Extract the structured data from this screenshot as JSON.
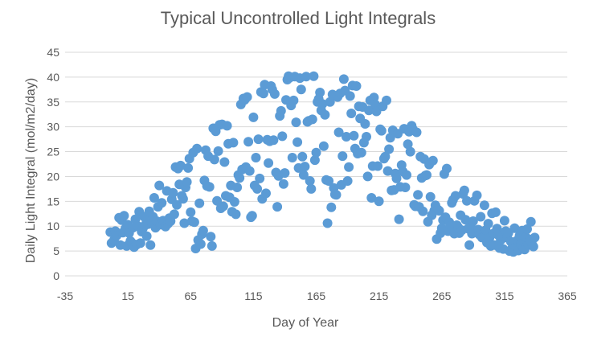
{
  "chart_data": {
    "type": "scatter",
    "title": "Typical Uncontrolled Light Integrals",
    "xlabel": "Day of Year",
    "ylabel": "Daily Light Integral (mol/m2/day)",
    "xlim": [
      -35,
      365
    ],
    "ylim": [
      0,
      45
    ],
    "xticks": [
      -35,
      15,
      65,
      115,
      165,
      215,
      265,
      315,
      365
    ],
    "yticks": [
      0,
      5,
      10,
      15,
      20,
      25,
      30,
      35,
      40,
      45
    ],
    "grid": "horizontal",
    "legend": "none",
    "color": "#5b9bd5",
    "points": [
      [
        1,
        8.8
      ],
      [
        2,
        6.6
      ],
      [
        4,
        7.2
      ],
      [
        5,
        9.0
      ],
      [
        6,
        8.1
      ],
      [
        8,
        11.7
      ],
      [
        9,
        6.2
      ],
      [
        10,
        11.2
      ],
      [
        11,
        8.7
      ],
      [
        12,
        12.1
      ],
      [
        13,
        9.5
      ],
      [
        14,
        6.0
      ],
      [
        15,
        10.3
      ],
      [
        16,
        8.6
      ],
      [
        17,
        7.0
      ],
      [
        18,
        6.7
      ],
      [
        19,
        9.7
      ],
      [
        20,
        5.8
      ],
      [
        21,
        11.4
      ],
      [
        22,
        6.3
      ],
      [
        23,
        10.0
      ],
      [
        24,
        12.9
      ],
      [
        25,
        6.6
      ],
      [
        26,
        8.9
      ],
      [
        27,
        9.6
      ],
      [
        28,
        11.9
      ],
      [
        29,
        10.3
      ],
      [
        30,
        8.0
      ],
      [
        31,
        10.4
      ],
      [
        32,
        13.0
      ],
      [
        33,
        6.2
      ],
      [
        34,
        10.8
      ],
      [
        35,
        11.9
      ],
      [
        36,
        15.7
      ],
      [
        37,
        9.7
      ],
      [
        38,
        11.0
      ],
      [
        39,
        13.9
      ],
      [
        40,
        18.2
      ],
      [
        41,
        10.3
      ],
      [
        42,
        14.7
      ],
      [
        43,
        11.1
      ],
      [
        44,
        10.8
      ],
      [
        45,
        9.9
      ],
      [
        46,
        17.1
      ],
      [
        47,
        10.5
      ],
      [
        48,
        11.6
      ],
      [
        49,
        11.0
      ],
      [
        50,
        15.4
      ],
      [
        51,
        16.7
      ],
      [
        52,
        12.4
      ],
      [
        53,
        21.9
      ],
      [
        54,
        14.3
      ],
      [
        55,
        21.6
      ],
      [
        56,
        18.4
      ],
      [
        57,
        22.2
      ],
      [
        58,
        16.1
      ],
      [
        59,
        15.5
      ],
      [
        60,
        10.6
      ],
      [
        61,
        17.8
      ],
      [
        62,
        18.9
      ],
      [
        63,
        21.7
      ],
      [
        64,
        23.6
      ],
      [
        65,
        12.8
      ],
      [
        66,
        11.0
      ],
      [
        67,
        24.8
      ],
      [
        68,
        10.8
      ],
      [
        69,
        5.5
      ],
      [
        70,
        25.6
      ],
      [
        71,
        7.2
      ],
      [
        72,
        14.6
      ],
      [
        73,
        6.4
      ],
      [
        74,
        8.4
      ],
      [
        75,
        9.1
      ],
      [
        76,
        19.2
      ],
      [
        77,
        25.3
      ],
      [
        78,
        18.1
      ],
      [
        79,
        24.1
      ],
      [
        80,
        17.9
      ],
      [
        81,
        7.9
      ],
      [
        82,
        6.0
      ],
      [
        83,
        29.7
      ],
      [
        84,
        23.4
      ],
      [
        85,
        29.1
      ],
      [
        86,
        15.1
      ],
      [
        87,
        25.1
      ],
      [
        88,
        30.4
      ],
      [
        89,
        13.6
      ],
      [
        90,
        30.5
      ],
      [
        91,
        14.0
      ],
      [
        92,
        22.9
      ],
      [
        93,
        16.1
      ],
      [
        94,
        30.2
      ],
      [
        95,
        26.6
      ],
      [
        96,
        15.8
      ],
      [
        97,
        18.2
      ],
      [
        98,
        12.9
      ],
      [
        99,
        26.8
      ],
      [
        100,
        14.9
      ],
      [
        101,
        12.4
      ],
      [
        102,
        17.8
      ],
      [
        103,
        20.3
      ],
      [
        104,
        19.7
      ],
      [
        105,
        34.5
      ],
      [
        106,
        21.4
      ],
      [
        107,
        35.7
      ],
      [
        108,
        35.4
      ],
      [
        109,
        21.9
      ],
      [
        110,
        36.0
      ],
      [
        111,
        27.0
      ],
      [
        112,
        21.1
      ],
      [
        113,
        11.8
      ],
      [
        114,
        12.1
      ],
      [
        115,
        31.9
      ],
      [
        116,
        18.2
      ],
      [
        117,
        23.8
      ],
      [
        118,
        17.5
      ],
      [
        119,
        27.5
      ],
      [
        120,
        19.6
      ],
      [
        121,
        37.0
      ],
      [
        122,
        15.5
      ],
      [
        123,
        36.7
      ],
      [
        124,
        38.5
      ],
      [
        125,
        16.6
      ],
      [
        126,
        27.4
      ],
      [
        127,
        22.7
      ],
      [
        128,
        27.1
      ],
      [
        129,
        38.2
      ],
      [
        130,
        37.5
      ],
      [
        131,
        27.3
      ],
      [
        132,
        36.6
      ],
      [
        133,
        20.8
      ],
      [
        134,
        13.9
      ],
      [
        135,
        20.1
      ],
      [
        136,
        32.2
      ],
      [
        137,
        33.2
      ],
      [
        138,
        28.1
      ],
      [
        139,
        18.5
      ],
      [
        140,
        20.7
      ],
      [
        141,
        35.4
      ],
      [
        142,
        39.5
      ],
      [
        143,
        40.2
      ],
      [
        144,
        39.9
      ],
      [
        145,
        34.3
      ],
      [
        146,
        23.8
      ],
      [
        147,
        35.3
      ],
      [
        148,
        40.1
      ],
      [
        149,
        30.9
      ],
      [
        150,
        26.9
      ],
      [
        151,
        21.7
      ],
      [
        152,
        39.8
      ],
      [
        153,
        37.5
      ],
      [
        154,
        24.0
      ],
      [
        155,
        20.3
      ],
      [
        156,
        22.0
      ],
      [
        157,
        40.1
      ],
      [
        158,
        31.0
      ],
      [
        159,
        31.2
      ],
      [
        160,
        19.1
      ],
      [
        161,
        17.5
      ],
      [
        162,
        31.5
      ],
      [
        163,
        40.2
      ],
      [
        164,
        23.3
      ],
      [
        165,
        24.8
      ],
      [
        166,
        35.0
      ],
      [
        167,
        35.6
      ],
      [
        168,
        36.9
      ],
      [
        169,
        33.3
      ],
      [
        170,
        34.6
      ],
      [
        171,
        26.1
      ],
      [
        172,
        32.4
      ],
      [
        173,
        19.3
      ],
      [
        174,
        10.6
      ],
      [
        175,
        19.1
      ],
      [
        176,
        35.0
      ],
      [
        177,
        13.8
      ],
      [
        178,
        36.5
      ],
      [
        179,
        17.7
      ],
      [
        180,
        16.4
      ],
      [
        181,
        16.3
      ],
      [
        182,
        36.0
      ],
      [
        183,
        28.9
      ],
      [
        184,
        36.7
      ],
      [
        185,
        18.3
      ],
      [
        186,
        24.1
      ],
      [
        187,
        39.6
      ],
      [
        188,
        37.3
      ],
      [
        189,
        28.0
      ],
      [
        190,
        19.1
      ],
      [
        191,
        21.9
      ],
      [
        192,
        36.2
      ],
      [
        193,
        32.7
      ],
      [
        194,
        38.3
      ],
      [
        195,
        28.2
      ],
      [
        196,
        25.6
      ],
      [
        197,
        38.2
      ],
      [
        198,
        24.6
      ],
      [
        199,
        34.1
      ],
      [
        200,
        31.7
      ],
      [
        201,
        24.8
      ],
      [
        202,
        34.0
      ],
      [
        203,
        26.8
      ],
      [
        204,
        30.6
      ],
      [
        205,
        28.0
      ],
      [
        206,
        20.0
      ],
      [
        207,
        33.3
      ],
      [
        208,
        35.3
      ],
      [
        209,
        15.7
      ],
      [
        210,
        22.1
      ],
      [
        211,
        35.9
      ],
      [
        212,
        34.5
      ],
      [
        213,
        33.1
      ],
      [
        214,
        22.1
      ],
      [
        215,
        15.0
      ],
      [
        216,
        29.5
      ],
      [
        217,
        29.2
      ],
      [
        218,
        34.1
      ],
      [
        219,
        23.6
      ],
      [
        220,
        24.0
      ],
      [
        221,
        35.3
      ],
      [
        222,
        21.1
      ],
      [
        223,
        25.5
      ],
      [
        224,
        27.8
      ],
      [
        225,
        17.2
      ],
      [
        226,
        29.3
      ],
      [
        227,
        17.3
      ],
      [
        228,
        20.6
      ],
      [
        229,
        19.6
      ],
      [
        230,
        28.6
      ],
      [
        231,
        11.4
      ],
      [
        232,
        17.9
      ],
      [
        233,
        22.3
      ],
      [
        234,
        21.0
      ],
      [
        235,
        29.6
      ],
      [
        236,
        17.8
      ],
      [
        237,
        20.3
      ],
      [
        238,
        26.5
      ],
      [
        239,
        29.0
      ],
      [
        240,
        25.0
      ],
      [
        241,
        30.2
      ],
      [
        242,
        29.5
      ],
      [
        243,
        14.3
      ],
      [
        244,
        14.0
      ],
      [
        245,
        28.9
      ],
      [
        246,
        16.3
      ],
      [
        247,
        13.9
      ],
      [
        248,
        24.0
      ],
      [
        249,
        19.7
      ],
      [
        250,
        13.0
      ],
      [
        251,
        23.5
      ],
      [
        252,
        20.2
      ],
      [
        253,
        20.3
      ],
      [
        254,
        10.9
      ],
      [
        255,
        22.4
      ],
      [
        256,
        15.9
      ],
      [
        257,
        12.2
      ],
      [
        258,
        23.2
      ],
      [
        259,
        13.1
      ],
      [
        260,
        14.2
      ],
      [
        261,
        7.4
      ],
      [
        262,
        13.3
      ],
      [
        263,
        13.1
      ],
      [
        264,
        8.6
      ],
      [
        265,
        9.6
      ],
      [
        266,
        11.2
      ],
      [
        267,
        20.5
      ],
      [
        268,
        11.8
      ],
      [
        269,
        21.6
      ],
      [
        270,
        9.0
      ],
      [
        271,
        10.8
      ],
      [
        272,
        10.1
      ],
      [
        273,
        14.7
      ],
      [
        274,
        15.3
      ],
      [
        275,
        8.5
      ],
      [
        276,
        16.1
      ],
      [
        277,
        10.2
      ],
      [
        278,
        9.8
      ],
      [
        279,
        8.6
      ],
      [
        280,
        12.2
      ],
      [
        281,
        9.2
      ],
      [
        282,
        16.5
      ],
      [
        283,
        17.2
      ],
      [
        284,
        11.3
      ],
      [
        285,
        15.1
      ],
      [
        286,
        9.5
      ],
      [
        287,
        6.2
      ],
      [
        288,
        10.1
      ],
      [
        289,
        8.5
      ],
      [
        290,
        11.0
      ],
      [
        291,
        15.1
      ],
      [
        292,
        8.8
      ],
      [
        293,
        16.2
      ],
      [
        294,
        9.3
      ],
      [
        295,
        8.3
      ],
      [
        296,
        11.9
      ],
      [
        297,
        7.7
      ],
      [
        298,
        7.8
      ],
      [
        299,
        14.2
      ],
      [
        300,
        9.2
      ],
      [
        301,
        6.7
      ],
      [
        302,
        10.5
      ],
      [
        303,
        7.6
      ],
      [
        304,
        6.0
      ],
      [
        305,
        12.6
      ],
      [
        306,
        8.5
      ],
      [
        307,
        6.2
      ],
      [
        308,
        12.8
      ],
      [
        309,
        9.5
      ],
      [
        310,
        8.2
      ],
      [
        311,
        5.6
      ],
      [
        312,
        7.2
      ],
      [
        313,
        8.0
      ],
      [
        314,
        5.4
      ],
      [
        315,
        11.1
      ],
      [
        316,
        9.0
      ],
      [
        317,
        7.7
      ],
      [
        318,
        8.6
      ],
      [
        319,
        5.0
      ],
      [
        320,
        6.9
      ],
      [
        321,
        5.5
      ],
      [
        322,
        4.8
      ],
      [
        323,
        9.6
      ],
      [
        324,
        6.0
      ],
      [
        325,
        7.1
      ],
      [
        326,
        5.1
      ],
      [
        327,
        8.1
      ],
      [
        328,
        6.4
      ],
      [
        329,
        9.1
      ],
      [
        330,
        5.6
      ],
      [
        331,
        5.3
      ],
      [
        332,
        7.8
      ],
      [
        333,
        9.4
      ],
      [
        334,
        6.3
      ],
      [
        335,
        7.3
      ],
      [
        336,
        10.9
      ],
      [
        337,
        6.3
      ],
      [
        338,
        5.9
      ],
      [
        339,
        7.7
      ]
    ]
  }
}
